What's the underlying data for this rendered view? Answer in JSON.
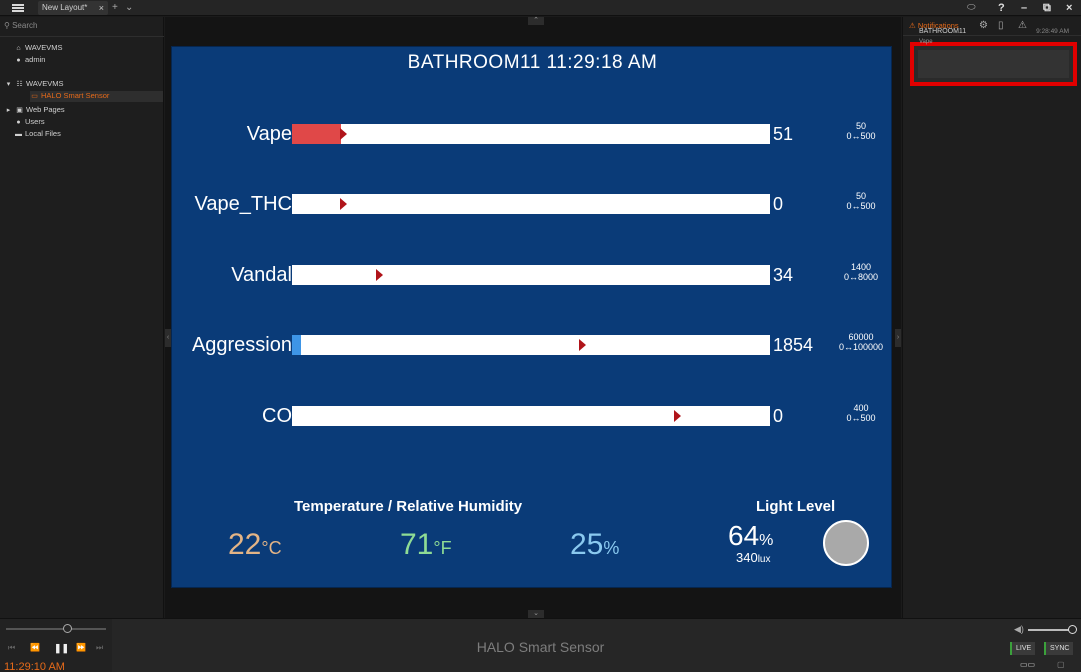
{
  "titlebar": {
    "tab_label": "New Layout*",
    "tab_close": "×",
    "add_tab": "+",
    "tabs_menu": "⌄",
    "help": "?",
    "minimize": "–",
    "restore": "⧉",
    "close": "×"
  },
  "left_panel": {
    "search_placeholder": "Search",
    "tree": [
      {
        "icon": "home-icon",
        "label": "WAVEVMS"
      },
      {
        "icon": "user-icon",
        "label": "admin"
      },
      {
        "icon": "server-icon",
        "label": "WAVEVMS"
      },
      {
        "icon": "camera-icon",
        "label": "HALO Smart Sensor"
      },
      {
        "icon": "web-icon",
        "label": "Web Pages"
      },
      {
        "icon": "users-icon",
        "label": "Users"
      },
      {
        "icon": "folder-icon",
        "label": "Local Files"
      }
    ]
  },
  "sensor": {
    "title": "BATHROOM11 11:29:18 AM",
    "metrics": [
      {
        "label": "Vape",
        "value": "51",
        "threshold": "50",
        "range": "0↔500",
        "fill_pct": 10.2,
        "fill_color": "#e04848",
        "marker_pct": 10
      },
      {
        "label": "Vape_THC",
        "value": "0",
        "threshold": "50",
        "range": "0↔500",
        "fill_pct": 0,
        "fill_color": "#e04848",
        "marker_pct": 10
      },
      {
        "label": "Vandal",
        "value": "34",
        "threshold": "1400",
        "range": "0↔8000",
        "fill_pct": 0,
        "fill_color": "#e04848",
        "marker_pct": 17.5
      },
      {
        "label": "Aggression",
        "value": "1854",
        "threshold": "60000",
        "range": "0↔100000",
        "fill_pct": 1.9,
        "fill_color": "#3e95e6",
        "marker_pct": 60
      },
      {
        "label": "CO",
        "value": "0",
        "threshold": "400",
        "range": "0↔500",
        "fill_pct": 0,
        "fill_color": "#e04848",
        "marker_pct": 80
      }
    ],
    "env_heading": "Temperature / Relative Humidity",
    "temp_c": "22",
    "temp_c_unit": "°C",
    "temp_f": "71",
    "temp_f_unit": "°F",
    "humidity": "25",
    "humidity_unit": "%",
    "light_heading": "Light Level",
    "light_pct": "64",
    "light_pct_unit": "%",
    "light_lux": "340",
    "light_lux_unit": "lux",
    "colors": {
      "temp_c": "#e3b486",
      "temp_f": "#8fdc95",
      "humidity": "#8ac9ef"
    }
  },
  "right_panel": {
    "notifications_label": "Notifications",
    "notification": {
      "title": "BATHROOM11",
      "time": "9:28:49 AM",
      "subtitle": "Vape"
    }
  },
  "bottombar": {
    "device_name": "HALO Smart Sensor",
    "time": "11:29:10 AM",
    "live": "LIVE",
    "sync": "SYNC"
  }
}
